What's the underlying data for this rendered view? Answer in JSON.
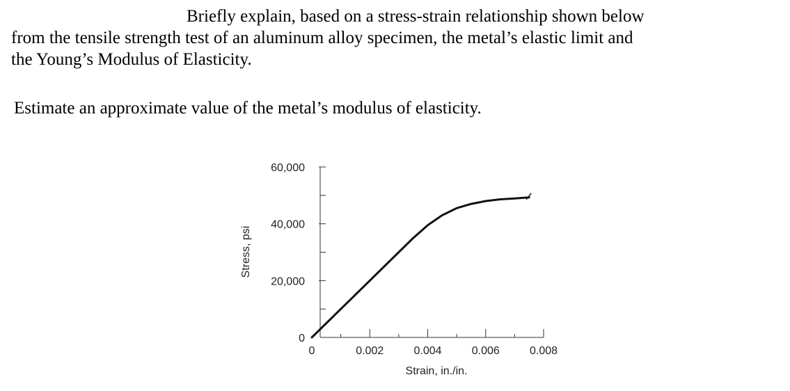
{
  "question": {
    "lines": [
      "Briefly explain, based on a stress-strain relationship shown below",
      "from the tensile strength test of an aluminum alloy specimen, the metal’s elastic limit and",
      "the Young’s Modulus of Elasticity."
    ],
    "estimate_prompt": "Estimate an approximate value of the metal’s modulus of elasticity."
  },
  "chart_data": {
    "type": "line",
    "xlabel": "Strain, in./in.",
    "ylabel": "Stress, psi",
    "xlim": [
      0,
      0.008
    ],
    "ylim": [
      0,
      60000
    ],
    "x_ticks": [
      0,
      0.002,
      0.004,
      0.006,
      0.008
    ],
    "x_tick_labels": [
      "0",
      "0.002",
      "0.004",
      "0.006",
      "0.008"
    ],
    "y_ticks": [
      0,
      20000,
      40000,
      60000
    ],
    "y_tick_labels": [
      "0",
      "20,000",
      "40,000",
      "60,000"
    ],
    "grid": false,
    "series": [
      {
        "points": [
          [
            0,
            0
          ],
          [
            0.001,
            10000
          ],
          [
            0.002,
            20000
          ],
          [
            0.003,
            30000
          ],
          [
            0.0035,
            35000
          ],
          [
            0.004,
            39500
          ],
          [
            0.0045,
            43000
          ],
          [
            0.005,
            45500
          ],
          [
            0.0055,
            47000
          ],
          [
            0.006,
            48000
          ],
          [
            0.0065,
            48600
          ],
          [
            0.007,
            48900
          ],
          [
            0.0075,
            49300
          ]
        ]
      }
    ]
  }
}
